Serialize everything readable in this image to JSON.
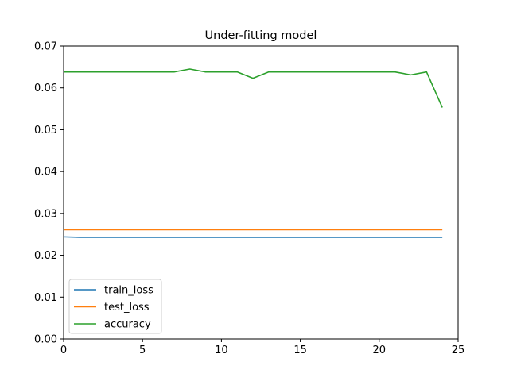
{
  "chart_data": {
    "type": "line",
    "title": "Under-fitting model",
    "xlabel": "",
    "ylabel": "",
    "xlim": [
      0,
      25
    ],
    "ylim": [
      0,
      0.07
    ],
    "x_ticks": [
      "0",
      "5",
      "10",
      "15",
      "20",
      "25"
    ],
    "y_ticks": [
      "0.00",
      "0.01",
      "0.02",
      "0.03",
      "0.04",
      "0.05",
      "0.06",
      "0.07"
    ],
    "grid": false,
    "legend_position": "lower-left",
    "x": [
      0,
      1,
      2,
      3,
      4,
      5,
      6,
      7,
      8,
      9,
      10,
      11,
      12,
      13,
      14,
      15,
      16,
      17,
      18,
      19,
      20,
      21,
      22,
      23,
      24
    ],
    "series": [
      {
        "name": "train_loss",
        "color": "#1f77b4",
        "values": [
          0.0244,
          0.0243,
          0.0243,
          0.0243,
          0.0243,
          0.0243,
          0.0243,
          0.0243,
          0.0243,
          0.0243,
          0.0243,
          0.0243,
          0.0243,
          0.0243,
          0.0243,
          0.0243,
          0.0243,
          0.0243,
          0.0243,
          0.0243,
          0.0243,
          0.0243,
          0.0243,
          0.0243,
          0.0243
        ]
      },
      {
        "name": "test_loss",
        "color": "#ff7f0e",
        "values": [
          0.0261,
          0.0261,
          0.0261,
          0.0261,
          0.0261,
          0.0261,
          0.0261,
          0.0261,
          0.0261,
          0.0261,
          0.0261,
          0.0261,
          0.0261,
          0.0261,
          0.0261,
          0.0261,
          0.0261,
          0.0261,
          0.0261,
          0.0261,
          0.0261,
          0.0261,
          0.0261,
          0.0261,
          0.0261
        ]
      },
      {
        "name": "accuracy",
        "color": "#2ca02c",
        "values": [
          0.0638,
          0.0638,
          0.0638,
          0.0638,
          0.0638,
          0.0638,
          0.0638,
          0.0638,
          0.0645,
          0.0638,
          0.0638,
          0.0638,
          0.0623,
          0.0638,
          0.0638,
          0.0638,
          0.0638,
          0.0638,
          0.0638,
          0.0638,
          0.0638,
          0.0638,
          0.0631,
          0.0638,
          0.0553
        ]
      }
    ]
  }
}
